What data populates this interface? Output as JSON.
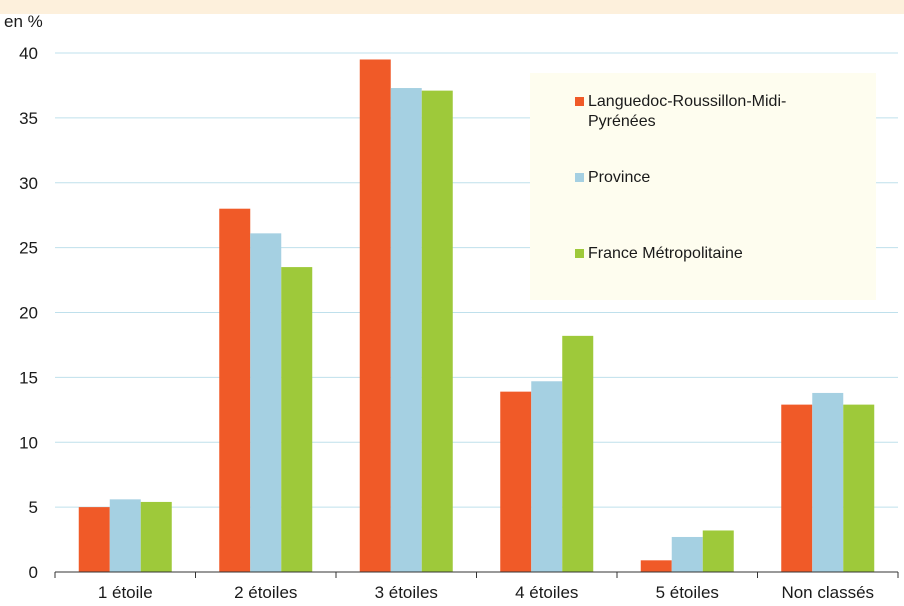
{
  "chart_data": {
    "type": "bar",
    "unit_label": "en %",
    "categories": [
      "1 étoile",
      "2 étoiles",
      "3 étoiles",
      "4 étoiles",
      "5 étoiles",
      "Non classés"
    ],
    "series": [
      {
        "name": "Languedoc-Roussillon-Midi-Pyrénées",
        "values": [
          5.0,
          28.0,
          39.5,
          13.9,
          0.9,
          12.9
        ],
        "color": "#f05a28"
      },
      {
        "name": "Province",
        "values": [
          5.6,
          26.1,
          37.3,
          14.7,
          2.7,
          13.8
        ],
        "color": "#a5d0e2"
      },
      {
        "name": "France Métropolitaine",
        "values": [
          5.4,
          23.5,
          37.1,
          18.2,
          3.2,
          12.9
        ],
        "color": "#9ec93a"
      }
    ],
    "ylim": [
      0,
      40
    ],
    "yticks": [
      0,
      5,
      10,
      15,
      20,
      25,
      30,
      35,
      40
    ],
    "grid": true,
    "legend_position": "top-right"
  },
  "colors": {
    "header_band": "#fdf0dc",
    "legend_background": "#fefdef",
    "gridline": "#bfe0ec",
    "axis": "#333333"
  }
}
